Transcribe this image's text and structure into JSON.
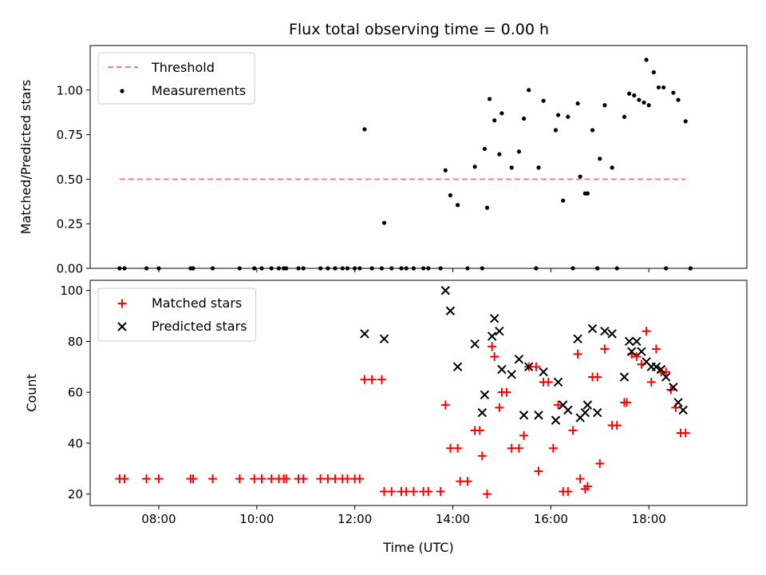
{
  "chart_data": [
    {
      "type": "scatter",
      "title": "Flux total observing time = 0.00 h",
      "ylabel": "Matched/Predicted stars",
      "xlim": [
        6.6,
        20.0
      ],
      "ylim": [
        0,
        1.25
      ],
      "yticks": [
        0,
        0.25,
        0.5,
        0.75,
        1.0
      ],
      "ytick_labels": [
        "0.00",
        "0.25",
        "0.50",
        "0.75",
        "1.00"
      ],
      "legend_placement": "upper-left",
      "grid": false,
      "series": [
        {
          "name": "Threshold",
          "kind": "line",
          "style": "dashed",
          "color": "#ff7f7f",
          "x": [
            7.2,
            18.75
          ],
          "y": [
            0.5,
            0.5
          ]
        },
        {
          "name": "Measurements",
          "kind": "dots",
          "color": "#000000",
          "x": [
            7.2,
            7.3,
            7.75,
            8.0,
            8.65,
            8.7,
            9.1,
            9.65,
            9.95,
            10.1,
            10.3,
            10.45,
            10.55,
            10.6,
            10.85,
            10.95,
            11.3,
            11.45,
            11.6,
            11.75,
            11.85,
            12.0,
            12.1,
            12.2,
            12.35,
            12.55,
            12.6,
            12.75,
            12.95,
            13.05,
            13.2,
            13.4,
            13.5,
            13.75,
            13.85,
            13.95,
            14.1,
            14.3,
            14.45,
            14.6,
            14.65,
            14.7,
            14.75,
            14.85,
            14.95,
            15.0,
            15.2,
            15.35,
            15.45,
            15.55,
            15.7,
            15.75,
            15.85,
            16.1,
            16.15,
            16.25,
            16.35,
            16.45,
            16.55,
            16.6,
            16.7,
            16.75,
            16.85,
            16.95,
            17.0,
            17.1,
            17.25,
            17.35,
            17.5,
            17.6,
            17.7,
            17.8,
            17.9,
            17.95,
            18.0,
            18.1,
            18.2,
            18.3,
            18.35,
            18.5,
            18.6,
            18.75,
            18.85
          ],
          "y": [
            0,
            0,
            0,
            0,
            0,
            0,
            0,
            0,
            0,
            0,
            0,
            0,
            0,
            0,
            0,
            0,
            0,
            0,
            0,
            0,
            0,
            0,
            0,
            0.78,
            0,
            0,
            0.255,
            0,
            0,
            0,
            0,
            0,
            0,
            0,
            0.55,
            0.41,
            0.355,
            0,
            0.57,
            0,
            0.67,
            0.34,
            0.95,
            0.83,
            0.64,
            0.87,
            0.565,
            0.655,
            0.84,
            1.0,
            0,
            0.565,
            0.94,
            0.775,
            0.86,
            0.38,
            0.85,
            0,
            0.925,
            0.515,
            0.42,
            0.42,
            0.775,
            0,
            0.615,
            0.915,
            0.565,
            0,
            0.85,
            0.98,
            0.97,
            0.945,
            0.93,
            1.17,
            0.915,
            1.1,
            1.015,
            1.015,
            0,
            0.985,
            0.945,
            0.825,
            0
          ]
        }
      ]
    },
    {
      "type": "scatter",
      "xlabel": "Time (UTC)",
      "ylabel": "Count",
      "xlim": [
        6.6,
        20.0
      ],
      "ylim": [
        15.5,
        104
      ],
      "xticks": [
        8,
        10,
        12,
        14,
        16,
        18
      ],
      "xtick_labels": [
        "08:00",
        "10:00",
        "12:00",
        "14:00",
        "16:00",
        "18:00"
      ],
      "yticks": [
        20,
        40,
        60,
        80,
        100
      ],
      "ytick_labels": [
        "20",
        "40",
        "60",
        "80",
        "100"
      ],
      "legend_placement": "upper-left",
      "grid": false,
      "series": [
        {
          "name": "Matched stars",
          "marker": "plus",
          "color": "#ff0000",
          "x": [
            7.2,
            7.3,
            7.75,
            8.0,
            8.65,
            8.7,
            9.1,
            9.65,
            9.95,
            10.1,
            10.3,
            10.45,
            10.55,
            10.6,
            10.85,
            10.95,
            11.3,
            11.45,
            11.6,
            11.75,
            11.85,
            12.0,
            12.1,
            12.2,
            12.35,
            12.55,
            12.6,
            12.75,
            12.95,
            13.05,
            13.2,
            13.4,
            13.5,
            13.75,
            13.85,
            13.95,
            14.1,
            14.15,
            14.3,
            14.45,
            14.55,
            14.6,
            14.7,
            14.8,
            14.85,
            14.95,
            15.0,
            15.1,
            15.2,
            15.35,
            15.45,
            15.55,
            15.7,
            15.75,
            15.85,
            15.95,
            16.05,
            16.15,
            16.25,
            16.35,
            16.45,
            16.55,
            16.6,
            16.7,
            16.75,
            16.85,
            16.95,
            17.0,
            17.1,
            17.25,
            17.35,
            17.5,
            17.55,
            17.65,
            17.75,
            17.85,
            17.95,
            18.05,
            18.15,
            18.25,
            18.35,
            18.45,
            18.55,
            18.65,
            18.75
          ],
          "y": [
            26,
            26,
            26,
            26,
            26,
            26,
            26,
            26,
            26,
            26,
            26,
            26,
            26,
            26,
            26,
            26,
            26,
            26,
            26,
            26,
            26,
            26,
            26,
            65,
            65,
            65,
            21,
            21,
            21,
            21,
            21,
            21,
            21,
            21,
            55,
            38,
            38,
            25,
            25,
            45,
            45,
            35,
            20,
            78,
            74,
            54,
            60,
            60,
            38,
            38,
            43,
            70,
            70,
            29,
            64,
            64,
            38,
            55,
            21,
            21,
            45,
            75,
            26,
            22,
            23,
            66,
            66,
            32,
            77,
            47,
            47,
            56,
            56,
            75,
            74,
            71,
            84,
            64,
            77,
            68,
            68,
            61,
            54,
            44,
            44
          ]
        },
        {
          "name": "Predicted stars",
          "marker": "x",
          "color": "#000000",
          "x": [
            12.2,
            12.6,
            13.85,
            13.95,
            14.1,
            14.45,
            14.6,
            14.65,
            14.8,
            14.85,
            14.95,
            15.0,
            15.2,
            15.35,
            15.45,
            15.55,
            15.75,
            15.85,
            16.1,
            16.15,
            16.25,
            16.35,
            16.55,
            16.6,
            16.7,
            16.75,
            16.85,
            16.95,
            17.1,
            17.25,
            17.5,
            17.6,
            17.65,
            17.75,
            17.85,
            17.95,
            18.05,
            18.15,
            18.25,
            18.35,
            18.5,
            18.6,
            18.7
          ],
          "y": [
            83,
            81,
            100,
            92,
            70,
            79,
            52,
            59,
            82,
            89,
            84,
            69,
            67,
            73,
            51,
            70,
            51,
            68,
            49,
            64,
            55,
            53,
            81,
            50,
            52,
            55,
            85,
            52,
            84,
            83,
            66,
            80,
            76,
            80,
            76,
            72,
            70,
            70,
            69,
            66,
            62,
            56,
            53
          ]
        }
      ]
    }
  ]
}
